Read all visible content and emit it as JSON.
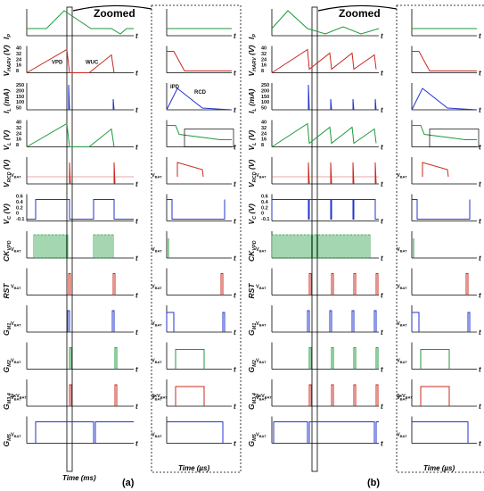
{
  "figure": {
    "zoomed_label": "Zoomed",
    "time_axis_main": "Time (ms)",
    "time_axis_zoom": "Time (µs)",
    "axis_t": "t",
    "vbat": "V",
    "vbat_sub": "BAT",
    "three_vbat": "3xV",
    "panel_labels": [
      "(a)",
      "(b)"
    ],
    "annotations": {
      "vpd": "VPD",
      "wuc": "WUC",
      "ipd": "IPD",
      "rcd": "RCD",
      "vbat_box": "V"
    },
    "rows": [
      {
        "key": "ip",
        "label": "I",
        "sub": "P",
        "unit": "",
        "ticks": []
      },
      {
        "key": "vharv",
        "label": "V",
        "sub": "HARV",
        "unit": " (V)",
        "ticks": [
          "40",
          "32",
          "24",
          "16",
          "8"
        ]
      },
      {
        "key": "il",
        "label": "I",
        "sub": "L",
        "unit": " (mA)",
        "ticks": [
          "250",
          "200",
          "150",
          "100",
          "50"
        ]
      },
      {
        "key": "vl",
        "label": "V",
        "sub": "L",
        "unit": " (V)",
        "ticks": [
          "40",
          "32",
          "24",
          "16",
          "8"
        ]
      },
      {
        "key": "vrcd",
        "label": "V",
        "sub": "RCD",
        "unit": " (V)",
        "ticks": []
      },
      {
        "key": "vc",
        "label": "V",
        "sub": "C",
        "unit": " (V)",
        "ticks": [
          "0.6",
          "0.4",
          "0.2",
          "0",
          "-0.1"
        ]
      },
      {
        "key": "ckvpd",
        "label": "CK",
        "sub": "VPD",
        "unit": "",
        "ticks": []
      },
      {
        "key": "rst",
        "label": "RST",
        "sub": "",
        "unit": "",
        "ticks": []
      },
      {
        "key": "gm1",
        "label": "G",
        "sub": "M1",
        "unit": "",
        "ticks": []
      },
      {
        "key": "gm2",
        "label": "G",
        "sub": "M2",
        "unit": "",
        "ticks": []
      },
      {
        "key": "gm34",
        "label": "G",
        "sub": "M3,4",
        "unit": "",
        "ticks": []
      },
      {
        "key": "gm5",
        "label": "G",
        "sub": "M5",
        "unit": "",
        "ticks": []
      }
    ],
    "colors": {
      "green": "#1e9a3c",
      "red": "#c8281e",
      "blue": "#2233cc",
      "text": "#111111",
      "axis": "#000000"
    }
  }
}
